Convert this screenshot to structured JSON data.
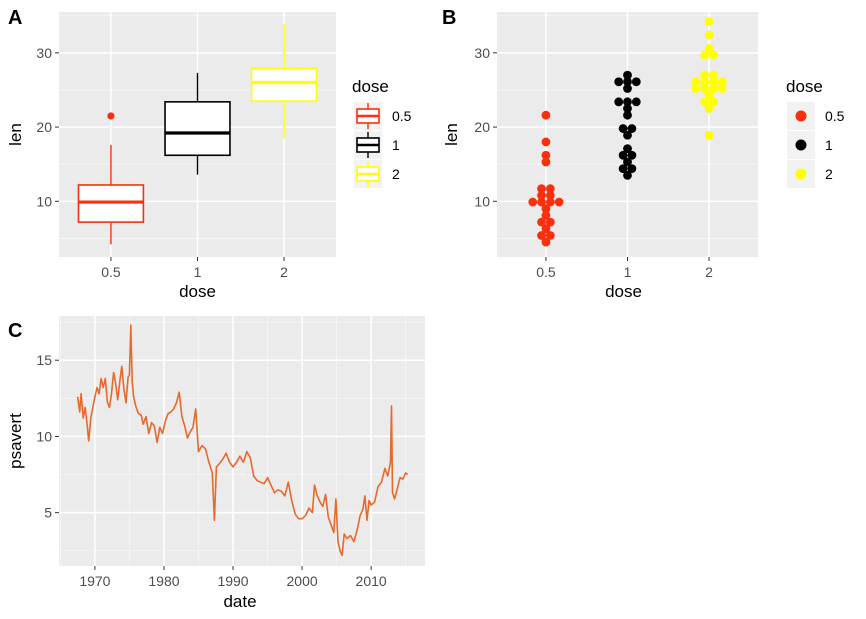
{
  "panels": [
    {
      "tag": "A",
      "chart_data": {
        "type": "box",
        "xlabel": "dose",
        "ylabel": "len",
        "categories": [
          "0.5",
          "1",
          "2"
        ],
        "ylim": [
          2.5,
          35.5
        ],
        "yticks": [
          10,
          20,
          30
        ],
        "grid": true,
        "legend": {
          "title": "dose",
          "position": "right",
          "entries": [
            "0.5",
            "1",
            "2"
          ]
        },
        "series": [
          {
            "name": "0.5",
            "color": "#F8300F",
            "min": 4.2,
            "q1": 7.2,
            "median": 9.9,
            "q3": 12.2,
            "max": 17.6,
            "outliers": [
              21.5
            ]
          },
          {
            "name": "1",
            "color": "#000000",
            "min": 13.6,
            "q1": 16.2,
            "median": 19.2,
            "q3": 23.4,
            "max": 27.3,
            "outliers": []
          },
          {
            "name": "2",
            "color": "#FFFF00",
            "min": 18.5,
            "q1": 23.5,
            "median": 26.0,
            "q3": 27.9,
            "max": 33.9,
            "outliers": []
          }
        ]
      }
    },
    {
      "tag": "B",
      "chart_data": {
        "type": "scatter",
        "style": "dotplot",
        "xlabel": "dose",
        "ylabel": "len",
        "categories": [
          "0.5",
          "1",
          "2"
        ],
        "ylim": [
          2.5,
          35.5
        ],
        "yticks": [
          10,
          20,
          30
        ],
        "grid": true,
        "legend": {
          "title": "dose",
          "position": "right",
          "entries": [
            "0.5",
            "1",
            "2"
          ]
        },
        "series": [
          {
            "name": "0.5",
            "color": "#F8300F",
            "values": [
              4.2,
              5.2,
              5.8,
              6.4,
              7.0,
              7.3,
              8.2,
              9.4,
              9.7,
              9.7,
              10.0,
              10.0,
              11.2,
              11.2,
              11.5,
              11.5,
              15.2,
              16.5,
              17.6,
              21.5
            ]
          },
          {
            "name": "1",
            "color": "#000000",
            "values": [
              13.6,
              14.5,
              15.2,
              16.5,
              16.5,
              17.3,
              18.8,
              19.7,
              20.0,
              21.2,
              22.4,
              23.0,
              23.3,
              23.6,
              25.5,
              25.8,
              26.4,
              26.4,
              27.3,
              14.5
            ]
          },
          {
            "name": "2",
            "color": "#FFFF00",
            "values": [
              18.5,
              22.4,
              23.0,
              23.6,
              24.5,
              24.8,
              25.5,
              25.5,
              26.4,
              26.4,
              26.7,
              27.3,
              29.4,
              29.5,
              30.9,
              32.5,
              33.9,
              24.8,
              26.0,
              26.4
            ]
          }
        ]
      }
    },
    {
      "tag": "C",
      "chart_data": {
        "type": "line",
        "xlabel": "date",
        "ylabel": "psavert",
        "xlim": [
          1964.8,
          2017.8
        ],
        "ylim": [
          1.5,
          17.9
        ],
        "xticks": [
          1970,
          1980,
          1990,
          2000,
          2010
        ],
        "yticks": [
          5,
          10,
          15
        ],
        "grid": true,
        "series": [
          {
            "color": "#E8692B",
            "x": [
              1967.5,
              1967.8,
              1968.0,
              1968.3,
              1968.6,
              1968.9,
              1969.1,
              1969.4,
              1969.7,
              1970.0,
              1970.3,
              1970.6,
              1970.9,
              1971.2,
              1971.5,
              1971.8,
              1972.1,
              1972.4,
              1972.7,
              1973.0,
              1973.3,
              1973.6,
              1973.9,
              1974.2,
              1974.5,
              1974.8,
              1975.0,
              1975.2,
              1975.4,
              1975.6,
              1975.9,
              1976.3,
              1976.7,
              1977.0,
              1977.4,
              1977.8,
              1978.2,
              1978.6,
              1979.0,
              1979.4,
              1979.8,
              1980.2,
              1980.6,
              1981.0,
              1981.4,
              1981.8,
              1982.2,
              1982.6,
              1983.0,
              1983.4,
              1983.8,
              1984.2,
              1984.6,
              1985.0,
              1985.5,
              1986.0,
              1986.5,
              1987.0,
              1987.3,
              1987.6,
              1988.0,
              1988.5,
              1989.0,
              1989.5,
              1990.0,
              1990.5,
              1991.0,
              1991.5,
              1992.0,
              1992.5,
              1993.0,
              1993.5,
              1994.0,
              1994.5,
              1995.0,
              1995.5,
              1996.0,
              1996.5,
              1997.0,
              1997.5,
              1998.0,
              1998.5,
              1999.0,
              1999.5,
              2000.0,
              2000.5,
              2001.0,
              2001.5,
              2001.8,
              2002.2,
              2002.6,
              2003.0,
              2003.4,
              2003.8,
              2004.2,
              2004.6,
              2004.9,
              2005.2,
              2005.5,
              2005.8,
              2006.1,
              2006.5,
              2007.0,
              2007.5,
              2008.0,
              2008.4,
              2008.8,
              2009.1,
              2009.4,
              2009.7,
              2010.0,
              2010.5,
              2011.0,
              2011.5,
              2012.0,
              2012.4,
              2012.8,
              2012.95,
              2013.1,
              2013.4,
              2013.8,
              2014.2,
              2014.6,
              2015.0,
              2015.3
            ],
            "y": [
              12.6,
              11.6,
              12.8,
              11.2,
              11.9,
              10.7,
              9.7,
              11.2,
              11.9,
              12.6,
              13.2,
              12.8,
              13.8,
              13.2,
              13.8,
              12.3,
              11.9,
              12.8,
              14.2,
              13.5,
              12.4,
              13.6,
              14.6,
              13.1,
              12.2,
              13.9,
              14.0,
              17.3,
              13.6,
              12.6,
              12.0,
              11.5,
              11.4,
              10.8,
              11.3,
              10.2,
              10.9,
              10.7,
              9.6,
              10.6,
              10.2,
              11.0,
              11.5,
              11.6,
              11.8,
              12.2,
              12.9,
              11.3,
              10.7,
              9.9,
              10.3,
              10.6,
              11.8,
              9.0,
              9.4,
              9.2,
              8.3,
              7.6,
              4.5,
              8.0,
              8.2,
              8.5,
              8.9,
              8.3,
              8.0,
              8.3,
              8.7,
              8.3,
              9.0,
              8.6,
              7.4,
              7.1,
              7.0,
              6.9,
              7.3,
              6.8,
              6.3,
              6.5,
              6.4,
              6.1,
              7.0,
              5.8,
              4.9,
              4.6,
              4.6,
              4.8,
              5.3,
              5.0,
              6.8,
              6.1,
              5.7,
              5.4,
              6.2,
              4.7,
              4.2,
              3.7,
              5.9,
              3.1,
              2.5,
              2.2,
              3.6,
              3.3,
              3.5,
              3.1,
              3.9,
              4.8,
              5.2,
              6.1,
              4.5,
              5.8,
              5.5,
              5.7,
              6.7,
              7.0,
              7.9,
              7.4,
              8.3,
              12.0,
              6.3,
              5.9,
              6.6,
              7.3,
              7.2,
              7.6,
              7.5
            ]
          }
        ]
      }
    }
  ]
}
